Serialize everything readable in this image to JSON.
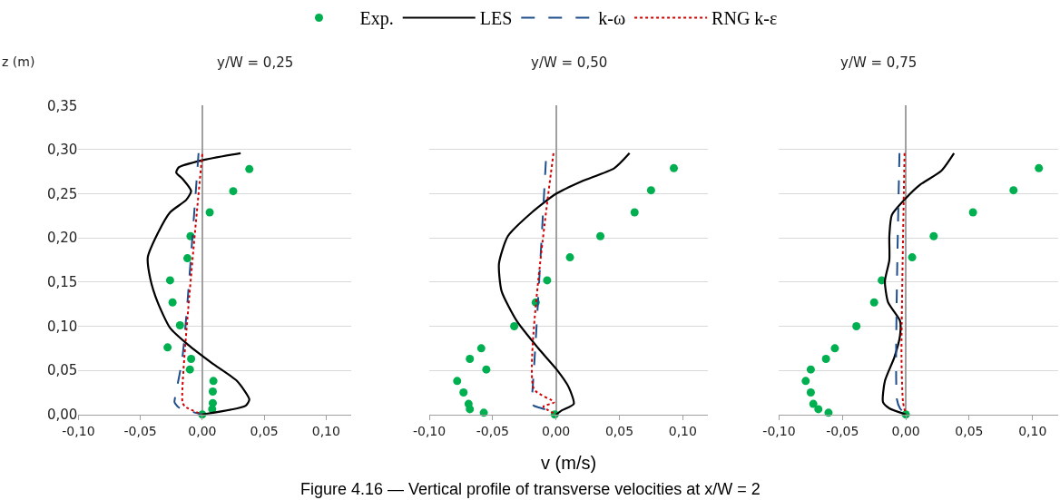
{
  "chart_data": [
    {
      "type": "scatter",
      "title": "y/W = 0,25",
      "ylabel": "z (m)",
      "legend": "top",
      "grid": "y",
      "xlim": [
        -0.1,
        0.12
      ],
      "xticks": [
        {
          "value": -0.1,
          "label": "-0,10"
        },
        {
          "value": -0.05,
          "label": "-0,05"
        },
        {
          "value": 0,
          "label": "0,00"
        },
        {
          "value": 0.05,
          "label": "0,05"
        },
        {
          "value": 0.1,
          "label": "0,10"
        }
      ],
      "ylim": [
        0,
        0.35
      ],
      "yticks": [
        {
          "value": 0,
          "label": "0,00"
        },
        {
          "value": 0.05,
          "label": "0,05"
        },
        {
          "value": 0.1,
          "label": "0,10"
        },
        {
          "value": 0.15,
          "label": "0,15"
        },
        {
          "value": 0.2,
          "label": "0,20"
        },
        {
          "value": 0.25,
          "label": "0,25"
        },
        {
          "value": 0.3,
          "label": "0,30"
        },
        {
          "value": 0.35,
          "label": "0,35"
        }
      ],
      "series": [
        {
          "name": "Exp.",
          "marker": "circle",
          "color": "#00b050",
          "x": [
            0.038,
            0.025,
            0.006,
            -0.0095,
            -0.012,
            -0.026,
            -0.024,
            -0.018,
            -0.028,
            -0.009,
            -0.01,
            0.009,
            0.0085,
            0.0085,
            0.008,
            0
          ],
          "values": [
            0.278,
            0.253,
            0.229,
            0.202,
            0.177,
            0.152,
            0.127,
            0.101,
            0.076,
            0.063,
            0.051,
            0.038,
            0.026,
            0.013,
            0.006,
            0
          ]
        },
        {
          "name": "LES",
          "type": "line",
          "line_style": "solid",
          "color": "#000000",
          "x": [
            0.031,
            0,
            -0.019,
            -0.021,
            -0.016,
            -0.009,
            -0.013,
            -0.026,
            -0.036,
            -0.044,
            -0.042,
            -0.036,
            -0.026,
            -0.0115,
            0.008,
            0.028,
            0.038,
            0.035,
            0
          ],
          "values": [
            0.296,
            0.288,
            0.28,
            0.274,
            0.267,
            0.253,
            0.243,
            0.229,
            0.205,
            0.178,
            0.154,
            0.127,
            0.098,
            0.079,
            0.058,
            0.038,
            0.017,
            0.01,
            0
          ]
        },
        {
          "name": "k-ω",
          "type": "line",
          "line_style": "dashed",
          "color": "#1f4e8c",
          "x": [
            -0.003,
            -0.016,
            -0.022,
            -0.0224,
            -0.019,
            0
          ],
          "values": [
            0.296,
            0.065,
            0.019,
            0.014,
            0.008,
            0
          ]
        },
        {
          "name": "RNG k-ε",
          "type": "line",
          "line_style": "dotted",
          "color": "#d00000",
          "x": [
            0,
            -0.016,
            -0.014,
            0
          ],
          "values": [
            0.295,
            0.014,
            0.009,
            0
          ]
        }
      ]
    },
    {
      "type": "scatter",
      "title": "y/W = 0,50",
      "xlabel": "v (m/s)",
      "legend": false,
      "grid": "y",
      "tick_labels": "x",
      "annotations": [
        "Figure 4.16 — Vertical profile of transverse velocities at x/W = 2"
      ],
      "xlim": [
        -0.1,
        0.12
      ],
      "xticks": [
        {
          "value": -0.1,
          "label": "-0,10"
        },
        {
          "value": -0.05,
          "label": "-0,05"
        },
        {
          "value": 0,
          "label": "0,00"
        },
        {
          "value": 0.05,
          "label": "0,05"
        },
        {
          "value": 0.1,
          "label": "0,10"
        }
      ],
      "ylim": [
        0,
        0.35
      ],
      "yticks": [
        {
          "value": 0,
          "label": null
        },
        {
          "value": 0.05,
          "label": null
        },
        {
          "value": 0.1,
          "label": null
        },
        {
          "value": 0.15,
          "label": null
        },
        {
          "value": 0.2,
          "label": null
        },
        {
          "value": 0.25,
          "label": null
        },
        {
          "value": 0.3,
          "label": null
        },
        {
          "value": 0.35,
          "label": null
        }
      ],
      "series": [
        {
          "marker": "circle",
          "color": "#00b050",
          "x": [
            0.093,
            0.075,
            0.062,
            0.035,
            0.011,
            -0.007,
            -0.016,
            -0.033,
            -0.059,
            -0.068,
            -0.055,
            -0.078,
            -0.073,
            -0.069,
            -0.068,
            -0.057,
            -0.001
          ],
          "values": [
            0.279,
            0.254,
            0.229,
            0.202,
            0.178,
            0.152,
            0.127,
            0.1,
            0.075,
            0.063,
            0.051,
            0.038,
            0.025,
            0.012,
            0.006,
            0.002,
            0
          ]
        },
        {
          "type": "line",
          "line_style": "solid",
          "color": "#000000",
          "x": [
            0.058,
            0.046,
            0.02,
            0,
            -0.019,
            -0.038,
            -0.045,
            -0.043,
            -0.031,
            -0.014,
            0.0005,
            0.01,
            0.014,
            0.005,
            0
          ],
          "values": [
            0.296,
            0.279,
            0.264,
            0.25,
            0.229,
            0.202,
            0.171,
            0.14,
            0.106,
            0.075,
            0.051,
            0.031,
            0.012,
            0.005,
            0
          ]
        },
        {
          "type": "line",
          "line_style": "dashed",
          "color": "#1f4e8c",
          "x": [
            -0.008,
            -0.019,
            -0.02,
            -0.0175,
            -0.009,
            0
          ],
          "values": [
            0.287,
            0.021,
            0.014,
            0.01,
            0.006,
            0
          ]
        },
        {
          "type": "line",
          "line_style": "dotted",
          "color": "#d00000",
          "x": [
            -0.002,
            -0.0175,
            -0.0014,
            -0.01,
            0
          ],
          "values": [
            0.296,
            0.029,
            0.014,
            0.009,
            0
          ]
        }
      ]
    },
    {
      "type": "scatter",
      "title": "y/W = 0,75",
      "legend": false,
      "grid": "y",
      "tick_labels": "x",
      "xlim": [
        -0.1,
        0.12
      ],
      "xticks": [
        {
          "value": -0.1,
          "label": "-0,10"
        },
        {
          "value": -0.05,
          "label": "-0,05"
        },
        {
          "value": 0,
          "label": "0,00"
        },
        {
          "value": 0.05,
          "label": "0,05"
        },
        {
          "value": 0.1,
          "label": "0,10"
        }
      ],
      "ylim": [
        0,
        0.35
      ],
      "yticks": [
        {
          "value": 0,
          "label": null
        },
        {
          "value": 0.05,
          "label": null
        },
        {
          "value": 0.1,
          "label": null
        },
        {
          "value": 0.15,
          "label": null
        },
        {
          "value": 0.2,
          "label": null
        },
        {
          "value": 0.25,
          "label": null
        },
        {
          "value": 0.3,
          "label": null
        },
        {
          "value": 0.35,
          "label": null
        }
      ],
      "series": [
        {
          "marker": "circle",
          "color": "#00b050",
          "x": [
            0.105,
            0.085,
            0.053,
            0.022,
            0.005,
            -0.019,
            -0.025,
            -0.039,
            -0.056,
            -0.063,
            -0.075,
            -0.079,
            -0.075,
            -0.073,
            -0.069,
            -0.061,
            0
          ],
          "values": [
            0.279,
            0.254,
            0.229,
            0.202,
            0.178,
            0.152,
            0.127,
            0.1,
            0.075,
            0.063,
            0.051,
            0.038,
            0.025,
            0.012,
            0.006,
            0.002,
            0
          ]
        },
        {
          "type": "line",
          "line_style": "solid",
          "color": "#000000",
          "x": [
            0.038,
            0.028,
            0.011,
            0,
            -0.011,
            -0.013,
            -0.013,
            -0.0165,
            -0.014,
            -0.0046,
            -0.0046,
            -0.009,
            -0.0165,
            -0.018,
            -0.013,
            0
          ],
          "values": [
            0.296,
            0.276,
            0.26,
            0.245,
            0.226,
            0.202,
            0.175,
            0.151,
            0.127,
            0.106,
            0.089,
            0.065,
            0.038,
            0.014,
            0.007,
            0
          ]
        },
        {
          "type": "line",
          "line_style": "dashed",
          "color": "#1f4e8c",
          "x": [
            -0.005,
            -0.007,
            -0.0046,
            0
          ],
          "values": [
            0.296,
            0.017,
            0.007,
            0
          ]
        },
        {
          "type": "line",
          "line_style": "dotted",
          "color": "#d00000",
          "x": [
            -0.001,
            -0.0034,
            -0.0022,
            0
          ],
          "values": [
            0.296,
            0.065,
            0.014,
            0
          ]
        }
      ]
    }
  ]
}
